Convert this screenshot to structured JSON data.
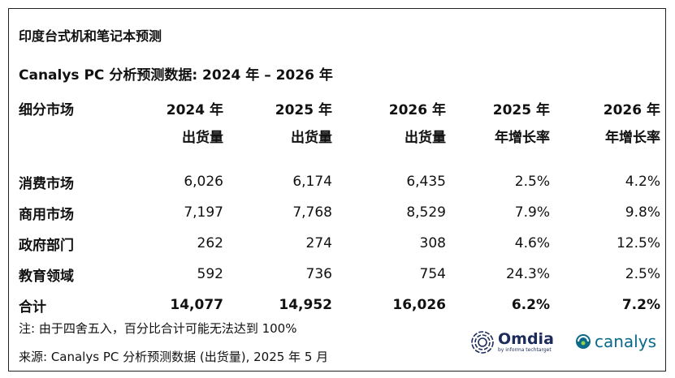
{
  "title": "印度台式机和笔记本预测",
  "subtitle": "Canalys PC 分析预测数据: 2024 年 – 2026 年",
  "table": {
    "headers": [
      {
        "line1": "细分市场",
        "line2": ""
      },
      {
        "line1": "2024 年",
        "line2": "出货量"
      },
      {
        "line1": "2025 年",
        "line2": "出货量"
      },
      {
        "line1": "2026 年",
        "line2": "出货量"
      },
      {
        "line1": "2025 年",
        "line2": "年增长率"
      },
      {
        "line1": "2026 年",
        "line2": "年增长率"
      }
    ],
    "rows": [
      [
        "消费市场",
        "6,026",
        "6,174",
        "6,435",
        "2.5%",
        "4.2%"
      ],
      [
        "商用市场",
        "7,197",
        "7,768",
        "8,529",
        "7.9%",
        "9.8%"
      ],
      [
        "政府部门",
        "262",
        "274",
        "308",
        "4.6%",
        "12.5%"
      ],
      [
        "教育领域",
        "592",
        "736",
        "754",
        "24.3%",
        "2.5%"
      ],
      [
        "合计",
        "14,077",
        "14,952",
        "16,026",
        "6.2%",
        "7.2%"
      ]
    ]
  },
  "note": "注: 由于四舍五入，百分比合计可能无法达到 100%",
  "source": "来源: Canalys PC 分析预测数据 (出货量), 2025 年 5 月",
  "logos": {
    "omdia": {
      "name": "Omdia",
      "sub": "by informa techtarget",
      "color": "#1c2b5a"
    },
    "canalys": {
      "name": "canalys",
      "color": "#0a6a8a"
    }
  }
}
